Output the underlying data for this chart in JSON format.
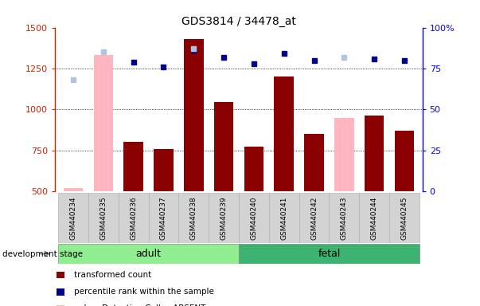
{
  "title": "GDS3814 / 34478_at",
  "samples": [
    "GSM440234",
    "GSM440235",
    "GSM440236",
    "GSM440237",
    "GSM440238",
    "GSM440239",
    "GSM440240",
    "GSM440241",
    "GSM440242",
    "GSM440243",
    "GSM440244",
    "GSM440245"
  ],
  "transformed_count": [
    null,
    null,
    800,
    760,
    1430,
    1045,
    775,
    1200,
    850,
    null,
    960,
    870
  ],
  "absent_value": [
    520,
    1330,
    null,
    null,
    null,
    null,
    null,
    null,
    null,
    950,
    null,
    null
  ],
  "percentile_rank": [
    null,
    null,
    79,
    76,
    86,
    82,
    78,
    84,
    80,
    null,
    81,
    80
  ],
  "absent_rank": [
    68,
    85,
    null,
    null,
    87,
    null,
    null,
    null,
    null,
    82,
    null,
    null
  ],
  "bar_color_present": "#8B0000",
  "bar_color_absent": "#FFB6C1",
  "dot_color_present": "#00008B",
  "dot_color_absent": "#B0C4DE",
  "ylim_left": [
    500,
    1500
  ],
  "ylim_right": [
    0,
    100
  ],
  "adult_color": "#90EE90",
  "fetal_color": "#3CB371",
  "stage_label": "development stage",
  "adult_n": 6,
  "fetal_n": 6,
  "right_tick_labels": [
    "0",
    "25",
    "50",
    "75",
    "100%"
  ],
  "right_tick_values": [
    0,
    25,
    50,
    75,
    100
  ],
  "left_tick_values": [
    500,
    750,
    1000,
    1250,
    1500
  ],
  "grid_values": [
    750,
    1000,
    1250
  ],
  "bar_width": 0.65
}
